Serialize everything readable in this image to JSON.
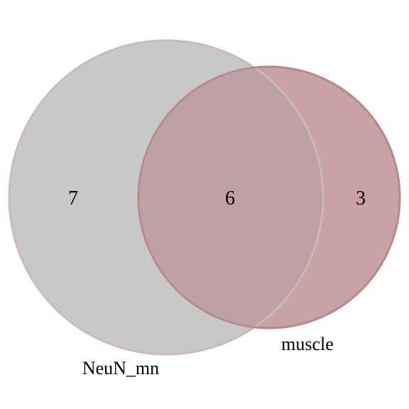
{
  "venn": {
    "sets": [
      {
        "name": "NeuN_mn",
        "fill_color": "#c8c8c8",
        "stroke_color": "#bdbdbd"
      },
      {
        "name": "muscle",
        "fill_color": "#c9a3a3",
        "stroke_color": "#b77d7d"
      }
    ],
    "overlap_color": "#bea1a4",
    "regions": {
      "only_first": "7",
      "intersection": "6",
      "only_second": "3"
    }
  }
}
